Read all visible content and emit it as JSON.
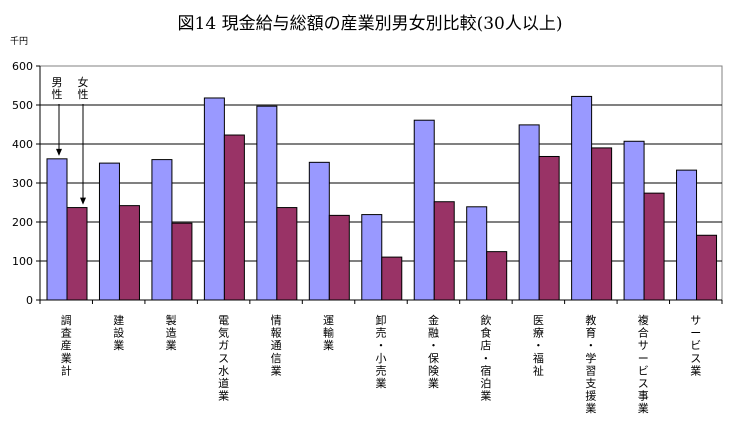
{
  "chart_data": {
    "type": "bar",
    "title": "図14  現金給与総額の産業別男女別比較(30人以上)",
    "unit_label": "千円",
    "ylim": [
      0,
      600
    ],
    "yticks": [
      "0",
      "100",
      "200",
      "300",
      "400",
      "500",
      "600"
    ],
    "grid": true,
    "categories": [
      "調査産業計",
      "建設業",
      "製造業",
      "電気ガス水道業",
      "情報通信業",
      "運輸業",
      "卸売・小売業",
      "金融・保険業",
      "飲食店・宿泊業",
      "医療・福祉",
      "教育・学習支援業",
      "複合サービス事業",
      "サービス業"
    ],
    "series": [
      {
        "name": "男性",
        "color": "#9999ff",
        "values": [
          362,
          351,
          360,
          518,
          497,
          353,
          219,
          461,
          239,
          449,
          522,
          407,
          333
        ]
      },
      {
        "name": "女性",
        "color": "#993366",
        "values": [
          237,
          242,
          197,
          423,
          237,
          217,
          110,
          252,
          124,
          368,
          390,
          274,
          166
        ]
      }
    ],
    "annotations": {
      "male_label": "男\n性",
      "female_label": "女\n性"
    }
  }
}
